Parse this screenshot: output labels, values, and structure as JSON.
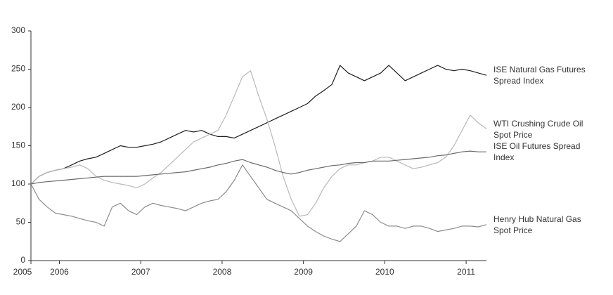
{
  "chart_data": {
    "type": "line",
    "x": [
      2005.65,
      2005.75,
      2005.85,
      2005.95,
      2006.05,
      2006.15,
      2006.25,
      2006.35,
      2006.45,
      2006.55,
      2006.65,
      2006.75,
      2006.85,
      2006.95,
      2007.05,
      2007.15,
      2007.25,
      2007.35,
      2007.45,
      2007.55,
      2007.65,
      2007.75,
      2007.85,
      2007.95,
      2008.05,
      2008.15,
      2008.25,
      2008.35,
      2008.45,
      2008.55,
      2008.65,
      2008.75,
      2008.85,
      2008.95,
      2009.05,
      2009.15,
      2009.25,
      2009.35,
      2009.45,
      2009.55,
      2009.65,
      2009.75,
      2009.85,
      2009.95,
      2010.05,
      2010.15,
      2010.25,
      2010.35,
      2010.45,
      2010.55,
      2010.65,
      2010.75,
      2010.85,
      2010.95,
      2011.05,
      2011.15,
      2011.25
    ],
    "series": [
      {
        "name": "ISE Natural Gas Futures Spread Index",
        "color": "#1e1e1e",
        "values": [
          100,
          110,
          115,
          118,
          120,
          125,
          130,
          133,
          135,
          140,
          145,
          150,
          148,
          148,
          150,
          152,
          155,
          160,
          165,
          170,
          168,
          170,
          165,
          162,
          162,
          160,
          165,
          170,
          175,
          180,
          185,
          190,
          195,
          200,
          205,
          215,
          222,
          230,
          255,
          245,
          240,
          235,
          240,
          245,
          255,
          245,
          235,
          240,
          245,
          250,
          255,
          250,
          248,
          250,
          248,
          245,
          242
        ]
      },
      {
        "name": "WTI Crushing Crude Oil Spot Price",
        "color": "#b8b8b8",
        "values": [
          100,
          110,
          115,
          118,
          120,
          122,
          125,
          120,
          110,
          105,
          102,
          100,
          98,
          95,
          100,
          108,
          115,
          125,
          135,
          145,
          155,
          160,
          165,
          170,
          190,
          215,
          240,
          248,
          215,
          185,
          150,
          110,
          80,
          58,
          60,
          75,
          95,
          110,
          120,
          125,
          125,
          128,
          130,
          135,
          135,
          130,
          125,
          120,
          122,
          125,
          128,
          135,
          150,
          170,
          190,
          180,
          172
        ]
      },
      {
        "name": "ISE Oil Futures Spread Index",
        "color": "#6a6a6a",
        "values": [
          100,
          102,
          103,
          104,
          105,
          106,
          107,
          108,
          109,
          110,
          110,
          110,
          110,
          110,
          111,
          112,
          113,
          114,
          115,
          116,
          118,
          120,
          122,
          125,
          127,
          130,
          132,
          128,
          125,
          122,
          118,
          115,
          113,
          115,
          118,
          120,
          122,
          124,
          125,
          127,
          128,
          128,
          130,
          130,
          130,
          131,
          132,
          133,
          134,
          135,
          137,
          138,
          140,
          142,
          143,
          142,
          142
        ]
      },
      {
        "name": "Henry Hub Natural Gas Spot Price",
        "color": "#8c8c8c",
        "values": [
          100,
          80,
          70,
          62,
          60,
          58,
          55,
          52,
          50,
          45,
          70,
          75,
          65,
          60,
          70,
          75,
          72,
          70,
          68,
          65,
          70,
          75,
          78,
          80,
          90,
          105,
          125,
          110,
          95,
          80,
          75,
          70,
          65,
          55,
          45,
          38,
          32,
          28,
          25,
          35,
          45,
          65,
          60,
          50,
          45,
          45,
          42,
          45,
          45,
          42,
          38,
          40,
          42,
          45,
          45,
          44,
          47
        ]
      }
    ],
    "xlim": [
      2005.65,
      2011.25
    ],
    "xticks": [
      {
        "value": 2005.65,
        "label": "2005"
      },
      2006,
      2007,
      2008,
      2009,
      2010,
      2011
    ],
    "ylim": [
      0,
      300
    ],
    "yticks": [
      0,
      50,
      100,
      150,
      200,
      250,
      300
    ],
    "grid": false
  }
}
